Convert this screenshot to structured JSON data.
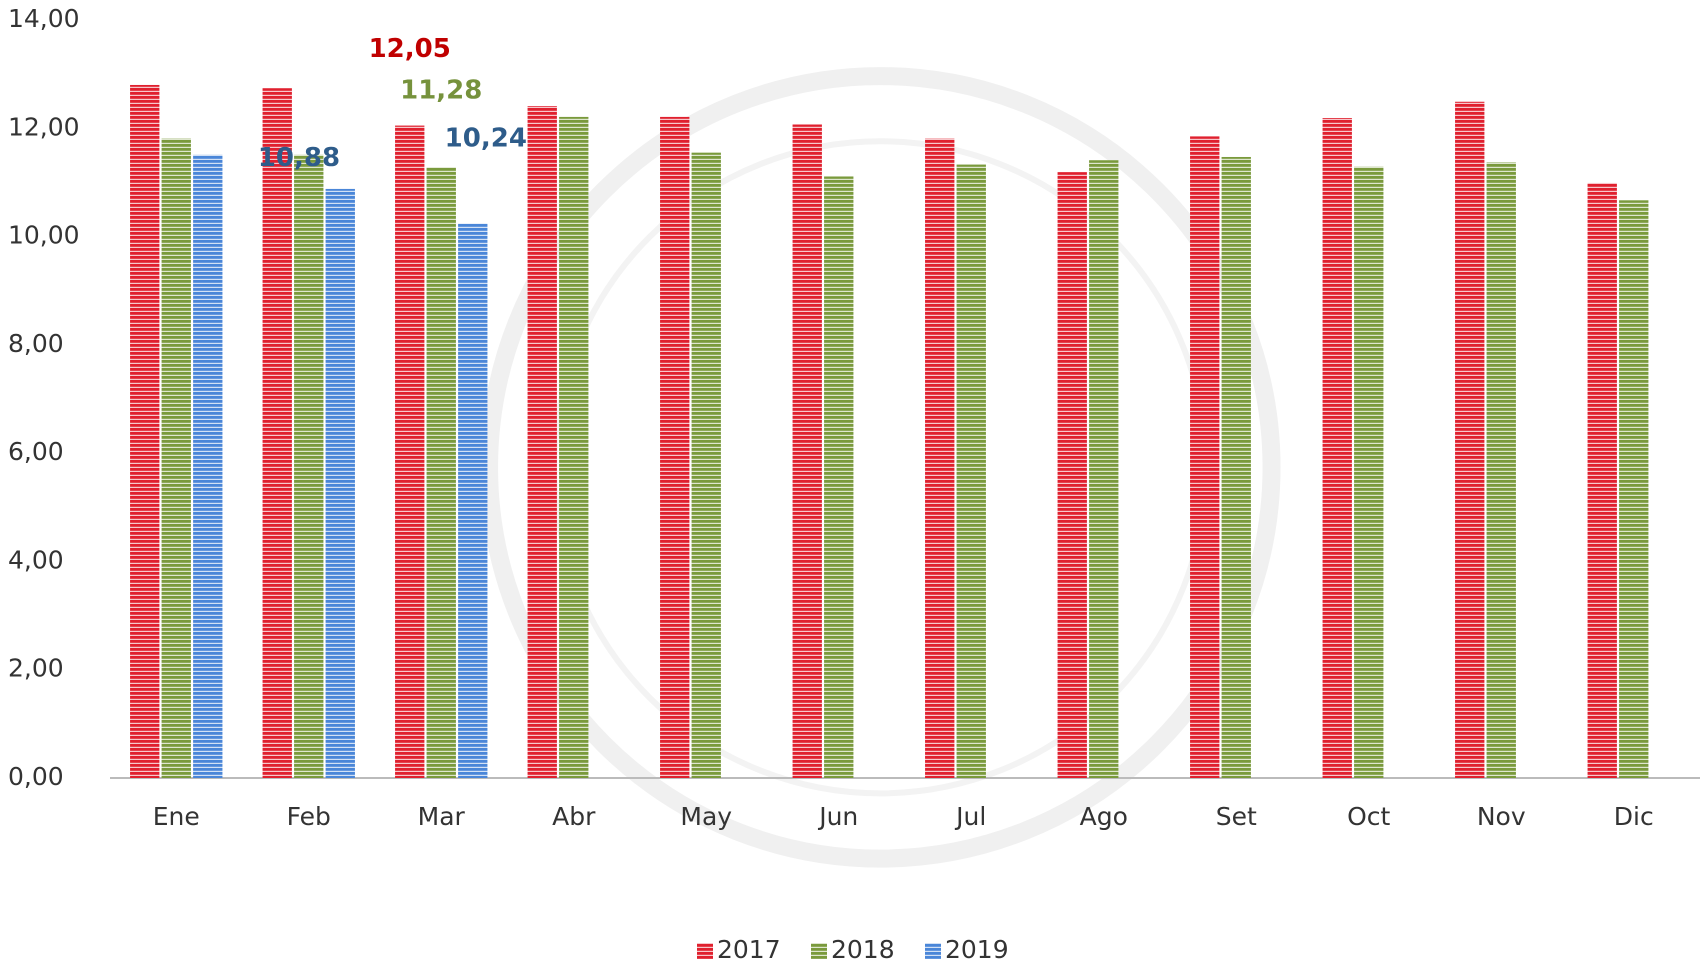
{
  "chart_data": {
    "type": "bar",
    "categories": [
      "Ene",
      "Feb",
      "Mar",
      "Abr",
      "May",
      "Jun",
      "Jul",
      "Ago",
      "Set",
      "Oct",
      "Nov",
      "Dic"
    ],
    "series": [
      {
        "name": "2017",
        "color": "#e0202e",
        "label_color": "#c00000",
        "values": [
          12.8,
          12.74,
          12.05,
          12.41,
          12.21,
          12.07,
          11.81,
          11.19,
          11.85,
          12.19,
          12.49,
          10.99
        ],
        "value_labels": [
          null,
          null,
          "12,05",
          null,
          null,
          null,
          null,
          null,
          null,
          null,
          null,
          null
        ]
      },
      {
        "name": "2018",
        "color": "#7a9a3c",
        "label_color": "#76923c",
        "values": [
          11.81,
          11.51,
          11.28,
          12.21,
          11.55,
          11.11,
          11.33,
          11.41,
          11.47,
          11.29,
          11.37,
          10.67
        ],
        "value_labels": [
          null,
          null,
          "11,28",
          null,
          null,
          null,
          null,
          null,
          null,
          null,
          null,
          null
        ]
      },
      {
        "name": "2019",
        "color": "#4a86d8",
        "label_color": "#2e5c8a",
        "values": [
          11.51,
          10.88,
          10.24,
          null,
          null,
          null,
          null,
          null,
          null,
          null,
          null,
          null
        ],
        "value_labels": [
          null,
          "10,88",
          "10,24",
          null,
          null,
          null,
          null,
          null,
          null,
          null,
          null,
          null
        ]
      }
    ],
    "ylim": [
      0,
      14
    ],
    "yticks": [
      {
        "value": 0,
        "label": "0,00"
      },
      {
        "value": 2,
        "label": "2,00"
      },
      {
        "value": 4,
        "label": "4,00"
      },
      {
        "value": 6,
        "label": "6,00"
      },
      {
        "value": 8,
        "label": "8,00"
      },
      {
        "value": 10,
        "label": "10,00"
      },
      {
        "value": 12,
        "label": "12,00"
      },
      {
        "value": 14,
        "label": "14,00"
      }
    ],
    "grid": false,
    "legend": "bottom",
    "striped": true
  }
}
